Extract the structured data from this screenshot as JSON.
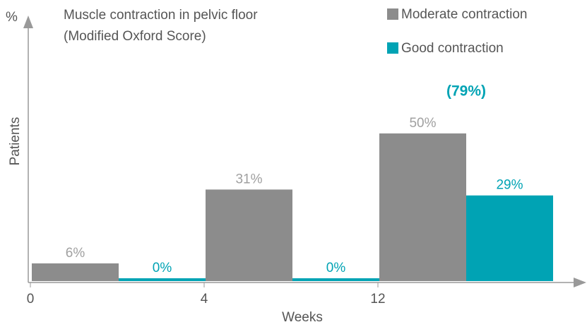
{
  "chart_data": {
    "type": "bar",
    "title": "Muscle contraction in pelvic floor",
    "subtitle": "(Modified Oxford Score)",
    "x_label": "Weeks",
    "y_label": "Patients",
    "y_unit": "%",
    "annotation": "(79%)",
    "categories": [
      "0",
      "4",
      "12"
    ],
    "series": [
      {
        "name": "Moderate contraction",
        "color": "#8c8c8c",
        "values": [
          6,
          31,
          50
        ],
        "value_labels": [
          "6%",
          "31%",
          "50%"
        ]
      },
      {
        "name": "Good contraction",
        "color": "#00a3b4",
        "values": [
          0,
          0,
          29
        ],
        "value_labels": [
          "0%",
          "0%",
          "29%"
        ]
      }
    ],
    "ylim": [
      0,
      88
    ],
    "grid": false
  }
}
